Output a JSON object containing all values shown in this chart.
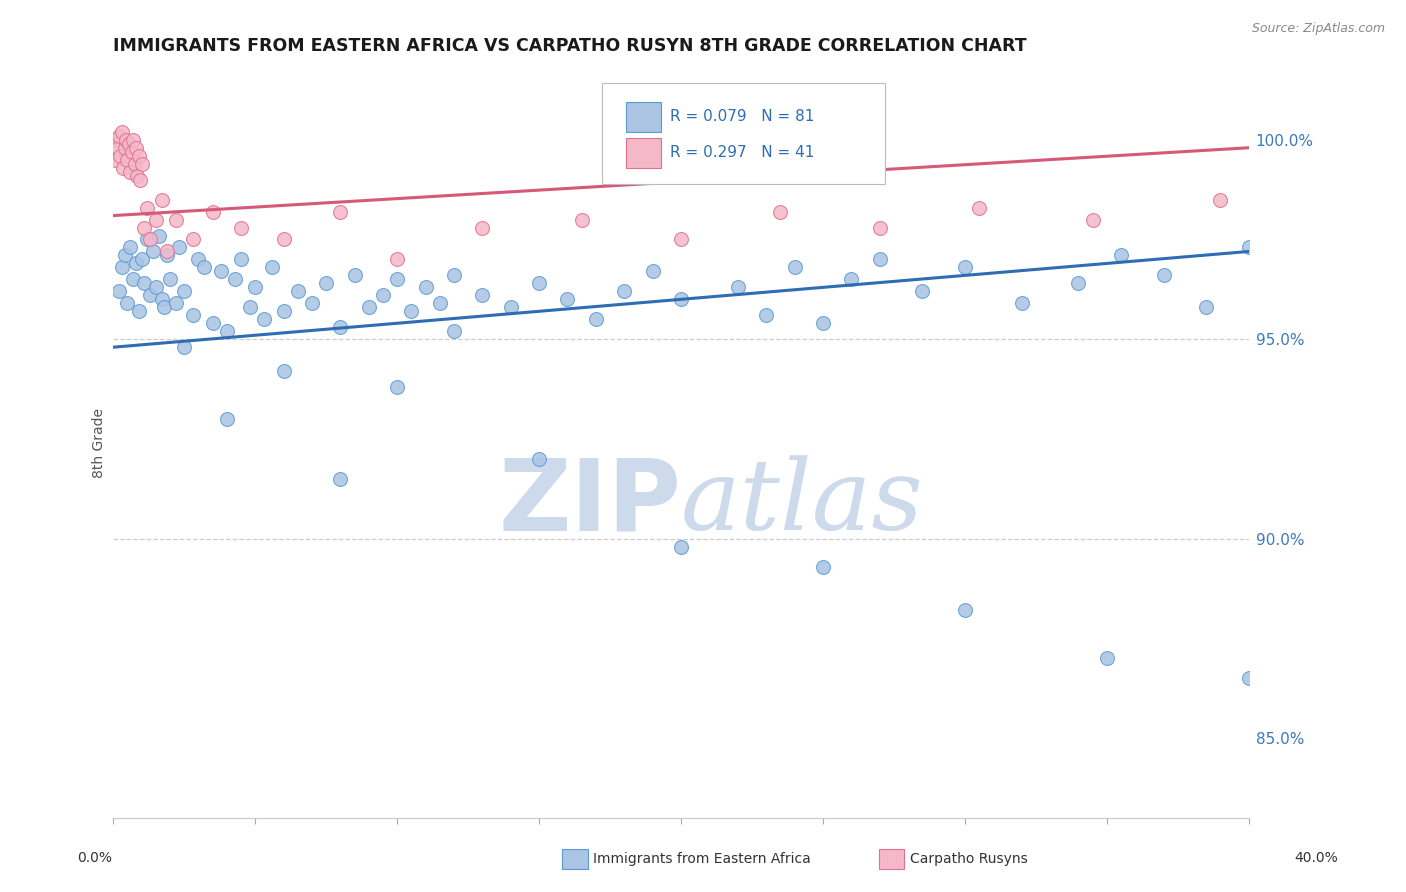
{
  "title": "IMMIGRANTS FROM EASTERN AFRICA VS CARPATHO RUSYN 8TH GRADE CORRELATION CHART",
  "source_text": "Source: ZipAtlas.com",
  "ylabel": "8th Grade",
  "xmin": 0.0,
  "xmax": 40.0,
  "ymin": 83.0,
  "ymax": 101.8,
  "blue_R": 0.079,
  "blue_N": 81,
  "pink_R": 0.297,
  "pink_N": 41,
  "blue_color": "#aac4e2",
  "blue_edge_color": "#5b9bd5",
  "pink_color": "#f4b8c8",
  "pink_edge_color": "#e07090",
  "blue_line_color": "#2e6db4",
  "pink_line_color": "#d45a78",
  "watermark_color": "#ccdaec",
  "grid_color": "#cccccc",
  "blue_line_y0": 94.8,
  "blue_line_y1": 97.2,
  "pink_line_y0": 98.1,
  "pink_line_y1": 99.8,
  "blue_scatter_x": [
    0.2,
    0.3,
    0.4,
    0.5,
    0.6,
    0.7,
    0.8,
    0.9,
    1.0,
    1.1,
    1.2,
    1.3,
    1.4,
    1.5,
    1.6,
    1.7,
    1.8,
    1.9,
    2.0,
    2.2,
    2.3,
    2.5,
    2.8,
    3.0,
    3.2,
    3.5,
    3.8,
    4.0,
    4.3,
    4.5,
    4.8,
    5.0,
    5.3,
    5.6,
    6.0,
    6.5,
    7.0,
    7.5,
    8.0,
    8.5,
    9.0,
    9.5,
    10.0,
    10.5,
    11.0,
    11.5,
    12.0,
    13.0,
    14.0,
    15.0,
    16.0,
    17.0,
    18.0,
    19.0,
    20.0,
    22.0,
    23.0,
    24.0,
    25.0,
    26.0,
    27.0,
    28.5,
    30.0,
    32.0,
    34.0,
    35.5,
    37.0,
    38.5,
    40.0,
    2.5,
    4.0,
    6.0,
    8.0,
    10.0,
    12.0,
    15.0,
    20.0,
    25.0,
    30.0,
    35.0,
    40.0
  ],
  "blue_scatter_y": [
    96.2,
    96.8,
    97.1,
    95.9,
    97.3,
    96.5,
    96.9,
    95.7,
    97.0,
    96.4,
    97.5,
    96.1,
    97.2,
    96.3,
    97.6,
    96.0,
    95.8,
    97.1,
    96.5,
    95.9,
    97.3,
    96.2,
    95.6,
    97.0,
    96.8,
    95.4,
    96.7,
    95.2,
    96.5,
    97.0,
    95.8,
    96.3,
    95.5,
    96.8,
    95.7,
    96.2,
    95.9,
    96.4,
    95.3,
    96.6,
    95.8,
    96.1,
    96.5,
    95.7,
    96.3,
    95.9,
    96.6,
    96.1,
    95.8,
    96.4,
    96.0,
    95.5,
    96.2,
    96.7,
    96.0,
    96.3,
    95.6,
    96.8,
    95.4,
    96.5,
    97.0,
    96.2,
    96.8,
    95.9,
    96.4,
    97.1,
    96.6,
    95.8,
    97.3,
    94.8,
    93.0,
    94.2,
    91.5,
    93.8,
    95.2,
    92.0,
    89.8,
    89.3,
    88.2,
    87.0,
    86.5
  ],
  "pink_scatter_x": [
    0.05,
    0.1,
    0.15,
    0.2,
    0.25,
    0.3,
    0.35,
    0.4,
    0.45,
    0.5,
    0.55,
    0.6,
    0.65,
    0.7,
    0.75,
    0.8,
    0.85,
    0.9,
    0.95,
    1.0,
    1.1,
    1.2,
    1.3,
    1.5,
    1.7,
    1.9,
    2.2,
    2.8,
    3.5,
    4.5,
    6.0,
    8.0,
    10.0,
    13.0,
    16.5,
    20.0,
    23.5,
    27.0,
    30.5,
    34.5,
    39.0
  ],
  "pink_scatter_y": [
    99.5,
    100.0,
    99.8,
    100.1,
    99.6,
    100.2,
    99.3,
    99.8,
    100.0,
    99.5,
    99.9,
    99.2,
    99.7,
    100.0,
    99.4,
    99.8,
    99.1,
    99.6,
    99.0,
    99.4,
    97.8,
    98.3,
    97.5,
    98.0,
    98.5,
    97.2,
    98.0,
    97.5,
    98.2,
    97.8,
    97.5,
    98.2,
    97.0,
    97.8,
    98.0,
    97.5,
    98.2,
    97.8,
    98.3,
    98.0,
    98.5
  ]
}
